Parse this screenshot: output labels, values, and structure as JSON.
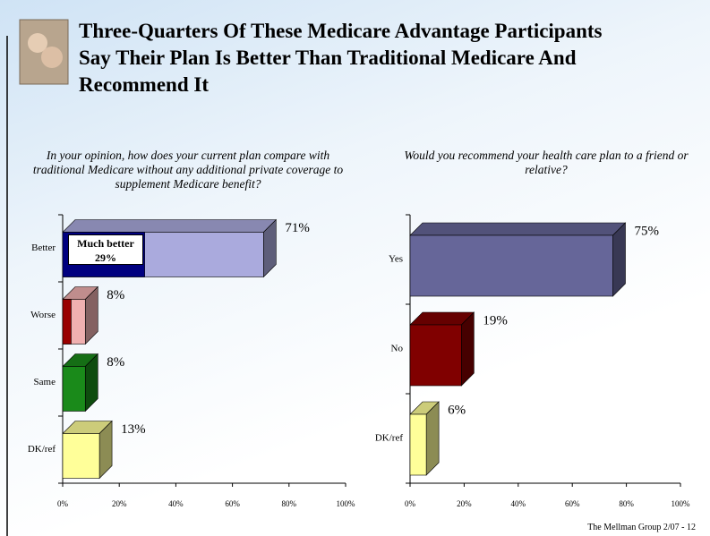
{
  "header": {
    "title_lines": [
      "Three-Quarters Of These Medicare Advantage Participants",
      "Say Their Plan Is Better Than Traditional Medicare And",
      "Recommend It"
    ]
  },
  "footer": "The Mellman Group  2/07 - 12",
  "chart_data": [
    {
      "type": "bar3d",
      "title": "In your opinion, how does your current plan compare with traditional Medicare without any additional private coverage to supplement Medicare benefit?",
      "categories": [
        "Better",
        "Worse",
        "Same",
        "DK/ref"
      ],
      "values": [
        71,
        8,
        8,
        13
      ],
      "value_labels": [
        "71%",
        "8%",
        "8%",
        "13%"
      ],
      "colors": [
        "#aaaadd",
        "#f0b0b0",
        "#1a8a1a",
        "#ffff99"
      ],
      "highlight": {
        "name": "Much better",
        "values": [
          29,
          3,
          null,
          null
        ],
        "value_labels": [
          "29%",
          null,
          null,
          null
        ],
        "colors": [
          "#000080",
          "#990000",
          null,
          null
        ]
      },
      "xlim": [
        0,
        100
      ],
      "xticks": [
        {
          "value": 0,
          "label": "0%"
        },
        {
          "value": 20,
          "label": "20%"
        },
        {
          "value": 40,
          "label": "40%"
        },
        {
          "value": 60,
          "label": "60%"
        },
        {
          "value": 80,
          "label": "80%"
        },
        {
          "value": 100,
          "label": "100%"
        }
      ]
    },
    {
      "type": "bar3d",
      "title": "Would you recommend your health care plan to a friend or relative?",
      "categories": [
        "Yes",
        "No",
        "DK/ref"
      ],
      "values": [
        75,
        19,
        6
      ],
      "value_labels": [
        "75%",
        "19%",
        "6%"
      ],
      "colors": [
        "#666699",
        "#800000",
        "#ffff99"
      ],
      "xlim": [
        0,
        100
      ],
      "xticks": [
        {
          "value": 0,
          "label": "0%"
        },
        {
          "value": 20,
          "label": "20%"
        },
        {
          "value": 40,
          "label": "40%"
        },
        {
          "value": 60,
          "label": "60%"
        },
        {
          "value": 80,
          "label": "80%"
        },
        {
          "value": 100,
          "label": "100%"
        }
      ]
    }
  ]
}
